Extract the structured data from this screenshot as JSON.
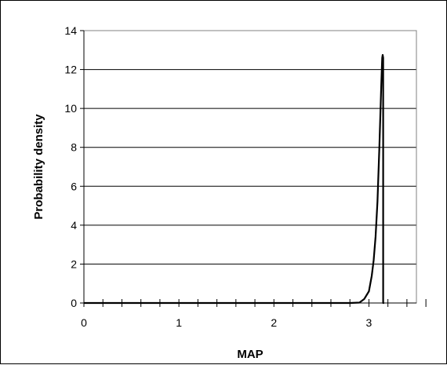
{
  "chart_data": {
    "type": "line",
    "title": "",
    "xlabel": "MAP",
    "ylabel": "Probability density",
    "xlim": [
      0,
      3.5
    ],
    "ylim": [
      0,
      14
    ],
    "x_ticks": [
      0,
      1,
      2,
      3
    ],
    "y_ticks": [
      0,
      2,
      4,
      6,
      8,
      10,
      12,
      14
    ],
    "x_minor_step": 0.2,
    "grid": "horizontal",
    "legend": "none",
    "series": [
      {
        "x": [
          0,
          2.8,
          2.9,
          2.95,
          3.0,
          3.03,
          3.05,
          3.07,
          3.09,
          3.1,
          3.11,
          3.12,
          3.13,
          3.14,
          3.145,
          3.15,
          3.15,
          3.16
        ],
        "y": [
          0,
          0,
          0.02,
          0.2,
          0.6,
          1.4,
          2.2,
          3.4,
          5.2,
          6.6,
          8.0,
          9.6,
          11.2,
          12.6,
          12.75,
          12.6,
          0,
          0
        ]
      }
    ]
  },
  "colors": {
    "line": "#000000",
    "grid": "#000000",
    "frame": "#000000"
  }
}
